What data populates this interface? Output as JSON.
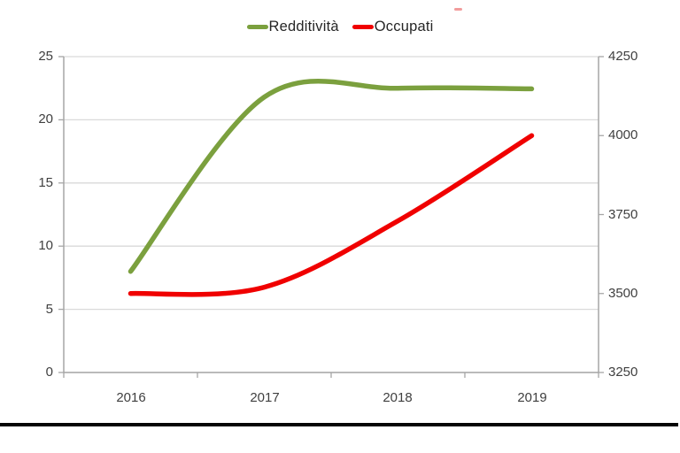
{
  "chart_data": {
    "type": "line",
    "title": "",
    "smooth": true,
    "grid": true,
    "legend_position": "top",
    "categories": [
      "2016",
      "2017",
      "2018",
      "2019"
    ],
    "series": [
      {
        "name": "Redditività",
        "axis": "left",
        "color": "#7BA03E",
        "values": [
          8,
          21.8,
          22.5,
          22.45
        ]
      },
      {
        "name": "Occupati",
        "axis": "right",
        "color": "#F00000",
        "values": [
          3500,
          3520,
          3730,
          4000
        ]
      }
    ],
    "left_axis": {
      "min": 0,
      "max": 25,
      "ticks": [
        "25",
        "20",
        "15",
        "10",
        "5",
        "0"
      ]
    },
    "right_axis": {
      "min": 3250,
      "max": 4250,
      "ticks": [
        "4250",
        "4000",
        "3750",
        "3500",
        "3250"
      ]
    }
  },
  "colors": {
    "grid": "#DADADA",
    "axis": "#A6A6A6",
    "tick_text": "#3F3F3F",
    "legend_text": "#262626",
    "bottom_rule": "#050505"
  }
}
